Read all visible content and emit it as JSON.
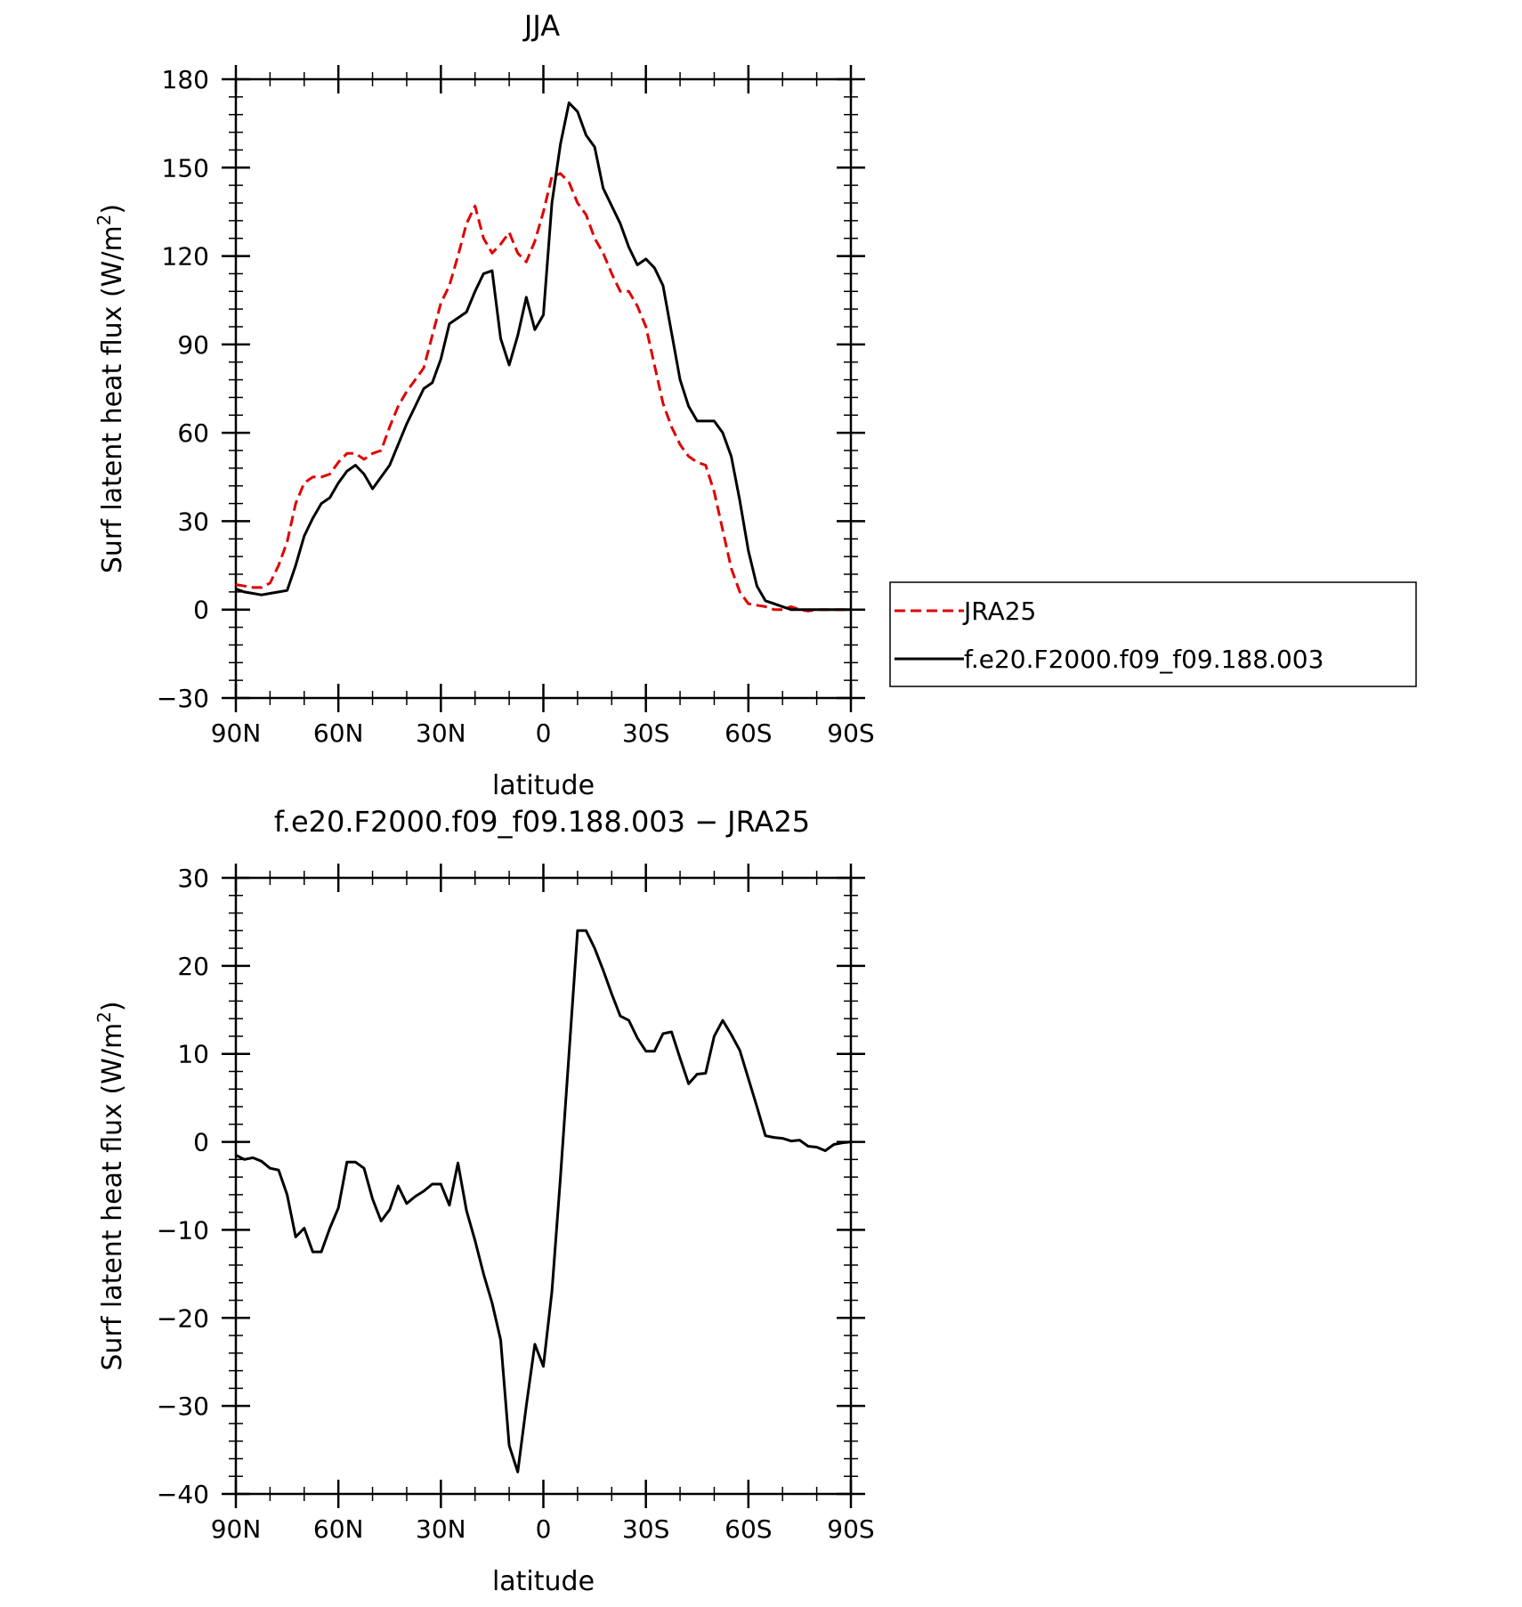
{
  "chart_data": [
    {
      "type": "line",
      "title": "JJA",
      "xlabel": "latitude",
      "ylabel": "Surf latent heat flux (W/m",
      "ylabel_sup": "2",
      "ylabel_close": ")",
      "xlim": [
        90,
        -90
      ],
      "ylim": [
        -30,
        180
      ],
      "x_ticks": [
        90,
        60,
        30,
        0,
        -30,
        -60,
        -90
      ],
      "x_tick_labels": [
        "90N",
        "60N",
        "30N",
        "0",
        "30S",
        "60S",
        "90S"
      ],
      "y_ticks": [
        -30,
        0,
        30,
        60,
        90,
        120,
        150,
        180
      ],
      "y_tick_labels": [
        "−30",
        "0",
        "30",
        "60",
        "90",
        "120",
        "150",
        "180"
      ],
      "legend_position": "right",
      "series": [
        {
          "name": "JRA25",
          "color": "#e00000",
          "dash": "dashed",
          "x": [
            90,
            87.5,
            85,
            82.5,
            80,
            77.5,
            75,
            72.5,
            70,
            67.5,
            65,
            62.5,
            60,
            57.5,
            55,
            52.5,
            50,
            47.5,
            45,
            42.5,
            40,
            37.5,
            35,
            32.5,
            30,
            27.5,
            25,
            22.5,
            20,
            17.5,
            15,
            12.5,
            10,
            7.5,
            5,
            2.5,
            0,
            -2.5,
            -5,
            -7.5,
            -10,
            -12.5,
            -15,
            -17.5,
            -20,
            -22.5,
            -25,
            -27.5,
            -30,
            -32.5,
            -35,
            -37.5,
            -40,
            -42.5,
            -45,
            -47.5,
            -50,
            -52.5,
            -55,
            -57.5,
            -60,
            -62.5,
            -65,
            -67.5,
            -70,
            -72.5,
            -75,
            -77.5,
            -80,
            -82.5,
            -85,
            -87.5,
            -90
          ],
          "y": [
            8.5,
            8,
            7.5,
            7.5,
            9,
            15,
            23,
            36,
            43,
            45,
            45,
            46,
            50,
            53,
            53,
            51,
            53,
            54,
            62,
            69,
            74,
            78,
            82,
            93,
            104,
            110,
            120,
            131,
            137,
            126,
            121,
            124,
            128,
            121,
            118,
            125,
            135,
            147,
            148,
            145,
            138,
            134,
            126,
            121,
            114,
            108,
            108,
            103,
            96,
            83,
            70,
            62,
            56,
            52,
            50,
            49,
            40,
            27,
            14,
            6,
            2,
            1.5,
            1,
            0,
            0,
            1,
            0,
            -0.5,
            0,
            0,
            0,
            0,
            0
          ]
        },
        {
          "name": "f.e20.F2000.f09_f09.188.003",
          "color": "#000000",
          "dash": "solid",
          "x": [
            90,
            87.5,
            85,
            82.5,
            80,
            77.5,
            75,
            72.5,
            70,
            67.5,
            65,
            62.5,
            60,
            57.5,
            55,
            52.5,
            50,
            47.5,
            45,
            42.5,
            40,
            37.5,
            35,
            32.5,
            30,
            27.5,
            25,
            22.5,
            20,
            17.5,
            15,
            12.5,
            10,
            7.5,
            5,
            2.5,
            0,
            -2.5,
            -5,
            -7.5,
            -10,
            -12.5,
            -15,
            -17.5,
            -20,
            -22.5,
            -25,
            -27.5,
            -30,
            -32.5,
            -35,
            -37.5,
            -40,
            -42.5,
            -45,
            -47.5,
            -50,
            -52.5,
            -55,
            -57.5,
            -60,
            -62.5,
            -65,
            -67.5,
            -70,
            -72.5,
            -75,
            -77.5,
            -80,
            -82.5,
            -85,
            -87.5,
            -90
          ],
          "y": [
            7,
            6,
            5.5,
            5,
            5.5,
            6,
            6.5,
            15,
            25,
            31,
            36,
            38,
            43,
            47,
            49,
            46,
            41,
            45,
            49,
            56,
            63,
            69,
            75,
            77,
            85,
            97,
            99,
            101,
            108,
            114,
            115,
            92,
            83,
            93,
            106,
            95,
            100,
            138,
            158,
            172,
            169,
            161,
            157,
            143,
            137,
            131,
            123,
            117,
            119,
            116,
            110,
            94,
            78,
            69,
            64,
            64,
            64,
            60,
            52,
            37,
            20,
            8,
            3,
            2,
            1,
            0,
            0,
            0,
            0,
            0,
            0,
            0,
            0
          ]
        }
      ]
    },
    {
      "type": "line",
      "title": "f.e20.F2000.f09_f09.188.003 − JRA25",
      "xlabel": "latitude",
      "ylabel": "Surf latent heat flux (W/m",
      "ylabel_sup": "2",
      "ylabel_close": ")",
      "xlim": [
        90,
        -90
      ],
      "ylim": [
        -40,
        30
      ],
      "x_ticks": [
        90,
        60,
        30,
        0,
        -30,
        -60,
        -90
      ],
      "x_tick_labels": [
        "90N",
        "60N",
        "30N",
        "0",
        "30S",
        "60S",
        "90S"
      ],
      "y_ticks": [
        -40,
        -30,
        -20,
        -10,
        0,
        10,
        20,
        30
      ],
      "y_tick_labels": [
        "−40",
        "−30",
        "−20",
        "−10",
        "0",
        "10",
        "20",
        "30"
      ],
      "series": [
        {
          "color": "#000000",
          "dash": "solid",
          "x": [
            90,
            87.5,
            85,
            82.5,
            80,
            77.5,
            75,
            72.5,
            70,
            67.5,
            65,
            62.5,
            60,
            57.5,
            55,
            52.5,
            50,
            47.5,
            45,
            42.5,
            40,
            37.5,
            35,
            32.5,
            30,
            27.5,
            25,
            22.5,
            20,
            17.5,
            15,
            12.5,
            10,
            7.5,
            5,
            2.5,
            0,
            -2.5,
            -5,
            -7.5,
            -10,
            -12.5,
            -15,
            -17.5,
            -20,
            -22.5,
            -25,
            -27.5,
            -30,
            -32.5,
            -35,
            -37.5,
            -40,
            -42.5,
            -45,
            -47.5,
            -50,
            -52.5,
            -55,
            -57.5,
            -60,
            -62.5,
            -65,
            -67.5,
            -70,
            -72.5,
            -75,
            -77.5,
            -80,
            -82.5,
            -85,
            -87.5,
            -90
          ],
          "y": [
            -1.5,
            -2,
            -1.8,
            -2.2,
            -3,
            -3.2,
            -6,
            -10.8,
            -9.8,
            -12.5,
            -12.5,
            -9.8,
            -7.5,
            -2.3,
            -2.3,
            -3,
            -6.5,
            -9,
            -7.7,
            -5,
            -7,
            -6.2,
            -5.6,
            -4.8,
            -4.8,
            -7.2,
            -2.4,
            -7.8,
            -11.2,
            -15,
            -18.3,
            -22.5,
            -34.5,
            -37.5,
            -30,
            -23,
            -25.5,
            -17,
            -4,
            10,
            24,
            24,
            22,
            19.5,
            16.8,
            14.3,
            13.8,
            11.8,
            10.3,
            10.3,
            12.3,
            12.5,
            9.5,
            6.6,
            7.7,
            7.8,
            12,
            13.8,
            12.2,
            10.4,
            7.2,
            4,
            0.7,
            0.5,
            0.4,
            0.1,
            0.2,
            -0.5,
            -0.6,
            -1,
            -0.3,
            -0.1,
            0
          ]
        }
      ]
    }
  ]
}
